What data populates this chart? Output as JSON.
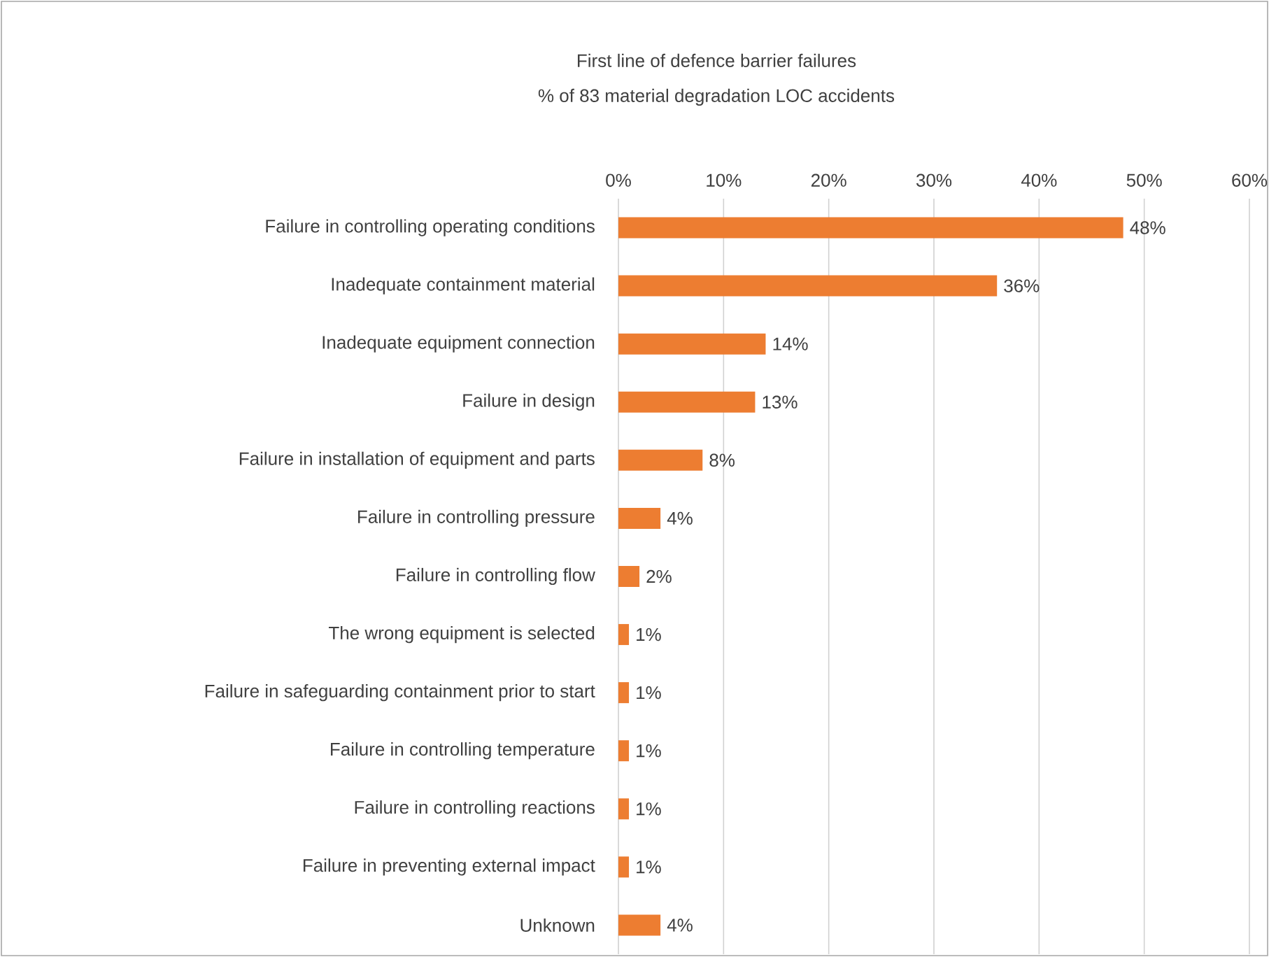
{
  "chart_data": {
    "type": "bar",
    "orientation": "horizontal",
    "title": "First line of defence barrier failures",
    "subtitle": "% of 83 material degradation LOC accidents",
    "categories": [
      "Failure in controlling operating conditions",
      "Inadequate containment material",
      "Inadequate equipment connection",
      "Failure in design",
      "Failure in installation of equipment and parts",
      "Failure in controlling pressure",
      "Failure in controlling flow",
      "The wrong equipment is selected",
      "Failure in safeguarding containment prior to start",
      "Failure in controlling temperature",
      "Failure in controlling reactions",
      "Failure in preventing external impact",
      "Unknown"
    ],
    "values": [
      48,
      36,
      14,
      13,
      8,
      4,
      2,
      1,
      1,
      1,
      1,
      1,
      4
    ],
    "value_labels": [
      "48%",
      "36%",
      "14%",
      "13%",
      "8%",
      "4%",
      "2%",
      "1%",
      "1%",
      "1%",
      "1%",
      "1%",
      "4%"
    ],
    "color": "#ed7d31",
    "xlim": [
      0,
      60
    ],
    "xticks": [
      {
        "value": 0,
        "label": "0%"
      },
      {
        "value": 10,
        "label": "10%"
      },
      {
        "value": 20,
        "label": "20%"
      },
      {
        "value": 30,
        "label": "30%"
      },
      {
        "value": 40,
        "label": "40%"
      },
      {
        "value": 50,
        "label": "50%"
      },
      {
        "value": 60,
        "label": "60%"
      }
    ],
    "grid": "x"
  }
}
